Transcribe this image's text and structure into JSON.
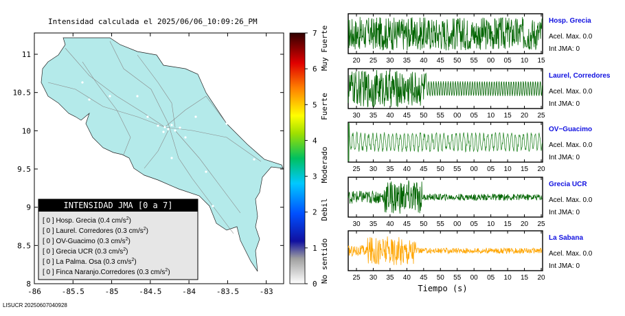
{
  "title": "Intensidad calculada el 2025/06/06_10:09:26_PM",
  "footer": "LISUCR 20250607040928",
  "map": {
    "x_ticks": [
      "-86",
      "-85.5",
      "-85",
      "-84.5",
      "-84",
      "-83.5",
      "-83"
    ],
    "y_ticks": [
      "11",
      "10.5",
      "10",
      "9.5",
      "9",
      "8.5",
      "8"
    ],
    "legend_title": "INTENSIDAD JMA [0 a 7]",
    "legend_rows": [
      {
        "prefix": "[ 0 ]  Hosp. Grecia (0.4 cm/s",
        "sup": "2",
        "suffix": ")"
      },
      {
        "prefix": "[ 0 ]  Laurel. Corredores (0.3 cm/s",
        "sup": "2",
        "suffix": ")"
      },
      {
        "prefix": "[ 0 ]  OV-Guacimo (0.3 cm/s",
        "sup": "2",
        "suffix": ")"
      },
      {
        "prefix": "[ 0 ]  Grecia UCR (0.3 cm/s",
        "sup": "2",
        "suffix": ")"
      },
      {
        "prefix": "[ 0 ]  La Palma. Osa (0.3 cm/s",
        "sup": "2",
        "suffix": ")"
      },
      {
        "prefix": "[ 0 ]  Finca Naranjo.Corredores (0.3 cm/s",
        "sup": "2",
        "suffix": ")"
      }
    ]
  },
  "colorbar": {
    "ticks": [
      "7",
      "6",
      "5",
      "4",
      "3",
      "2",
      "1",
      "0"
    ],
    "labels": [
      "Muy Fuerte",
      "Fuerte",
      "Moderado",
      "Debil",
      "No sentido"
    ]
  },
  "chart_data": [
    {
      "type": "line",
      "name": "Hosp. Grecia",
      "accel": "Acel. Max. 0.0",
      "int": "Int JMA: 0",
      "ticks": [
        "20",
        "25",
        "30",
        "35",
        "40",
        "45",
        "50",
        "55",
        "00",
        "05",
        "10",
        "15"
      ],
      "color": "#006400",
      "amplitude": 0.9,
      "burst": []
    },
    {
      "type": "line",
      "name": "Laurel, Corredores",
      "accel": "Acel. Max. 0.0",
      "int": "Int JMA: 0",
      "ticks": [
        "30",
        "35",
        "40",
        "45",
        "50",
        "55",
        "00",
        "05",
        "10",
        "15",
        "20",
        "25"
      ],
      "color": "#006400",
      "amplitude": 0.8,
      "burst": [
        0,
        0.4
      ]
    },
    {
      "type": "line",
      "name": "OV−Guacimo",
      "accel": "Acel. Max. 0.0",
      "int": "Int JMA: 0",
      "ticks": [
        "25",
        "30",
        "35",
        "40",
        "45",
        "50",
        "55",
        "00",
        "05",
        "10",
        "15",
        "20"
      ],
      "color": "#2e8b2e",
      "amplitude": 0.55,
      "burst": []
    },
    {
      "type": "line",
      "name": "Grecia UCR",
      "accel": "Acel. Max. 0.0",
      "int": "Int JMA: 0",
      "ticks": [
        "30",
        "35",
        "40",
        "45",
        "50",
        "55",
        "00",
        "05",
        "10",
        "15",
        "20",
        "25"
      ],
      "color": "#006400",
      "amplitude": 0.35,
      "burst": [
        0.18,
        0.38
      ]
    },
    {
      "type": "line",
      "name": "La Sabana",
      "accel": "Acel. Max. 0.0",
      "int": "Int JMA: 0",
      "ticks": [
        "25",
        "30",
        "35",
        "40",
        "45",
        "50",
        "55",
        "00",
        "05",
        "10",
        "15",
        "20"
      ],
      "color": "#ffa500",
      "amplitude": 0.3,
      "burst": [
        0.1,
        0.35
      ],
      "xlabel": "Tiempo (s)"
    }
  ]
}
